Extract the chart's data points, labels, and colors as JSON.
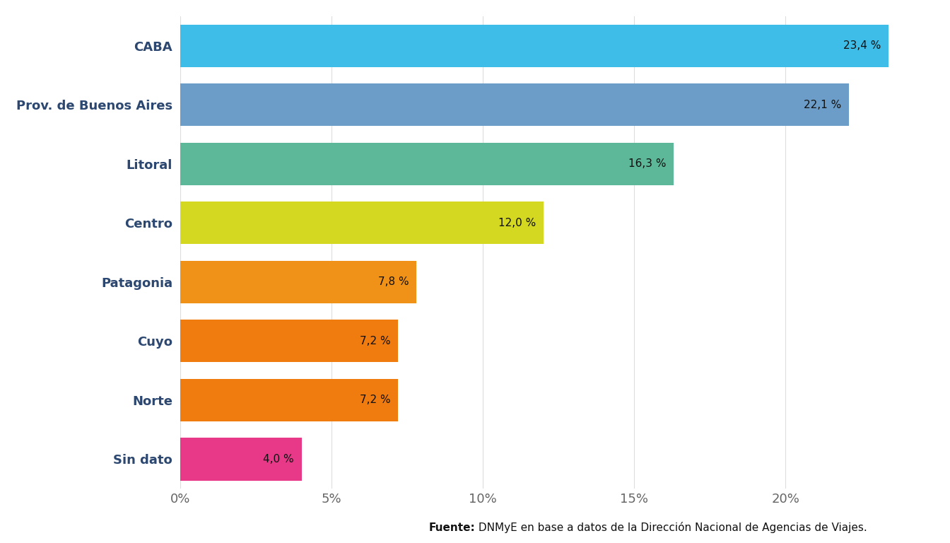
{
  "categories": [
    "CABA",
    "Prov. de Buenos Aires",
    "Litoral",
    "Centro",
    "Patagonia",
    "Cuyo",
    "Norte",
    "Sin dato"
  ],
  "values": [
    23.4,
    22.1,
    16.3,
    12.0,
    7.8,
    7.2,
    7.2,
    4.0
  ],
  "bar_colors": [
    "#3dbde8",
    "#6b9dc8",
    "#5cb898",
    "#d4d820",
    "#f09218",
    "#f07c10",
    "#f07c10",
    "#e83888"
  ],
  "labels": [
    "23,4 %",
    "22,1 %",
    "16,3 %",
    "12,0 %",
    "7,8 %",
    "7,2 %",
    "7,2 %",
    "4,0 %"
  ],
  "xlim": [
    0,
    24.5
  ],
  "xticks": [
    0,
    5,
    10,
    15,
    20
  ],
  "xtick_labels": [
    "0%",
    "5%",
    "10%",
    "15%",
    "20%"
  ],
  "background_color": "#ffffff",
  "grid_color": "#dddddd",
  "label_fontsize": 11,
  "tick_fontsize": 13,
  "ytick_color": "#2c4770",
  "xtick_color": "#666666",
  "source_text_bold": "Fuente:",
  "source_text_normal": " DNMyE en base a datos de la Dirección Nacional de Agencias de Viajes.",
  "source_fontsize": 11
}
